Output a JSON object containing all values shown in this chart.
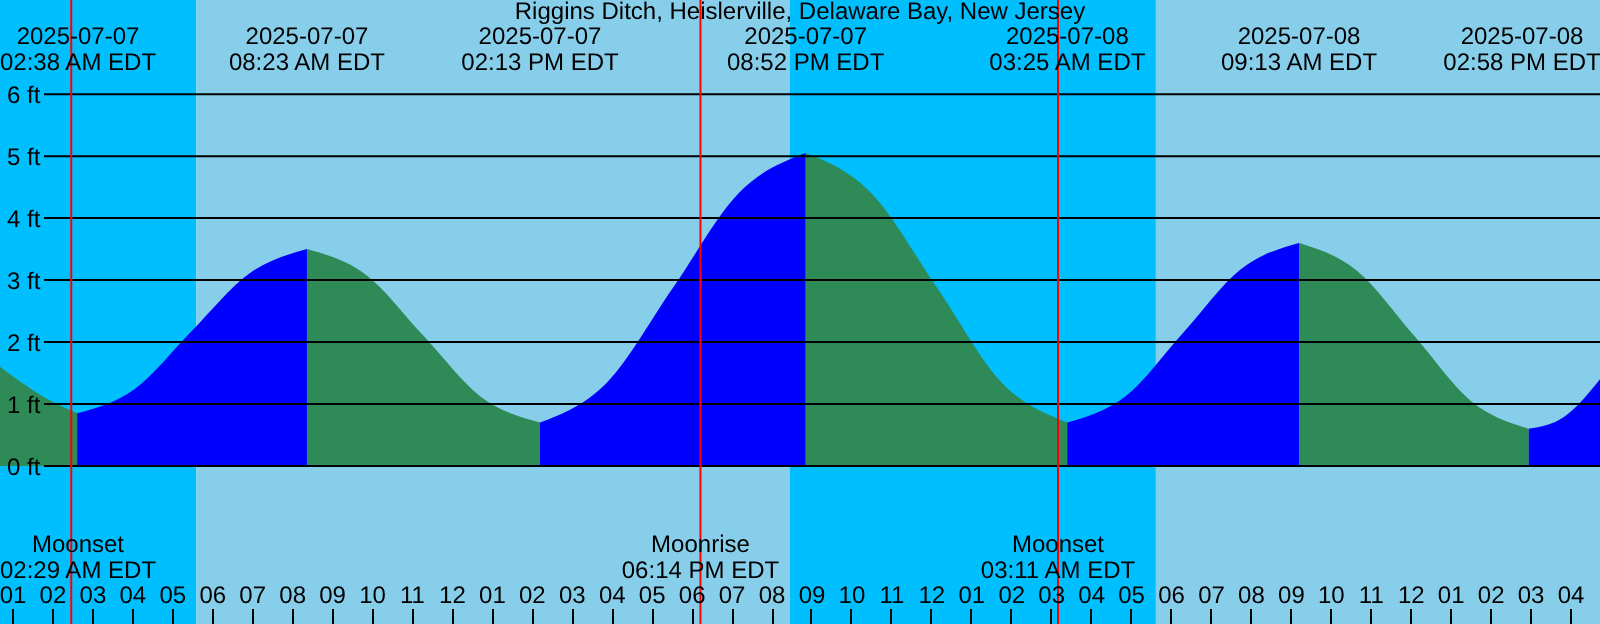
{
  "chart_data": {
    "type": "area",
    "title": "Riggins Ditch, Heislerville, Delaware Bay, New Jersey",
    "series": [
      {
        "color": "#2e8b57",
        "x": [
          "2025-07-07T00:42",
          "2025-07-07T01:42",
          "2025-07-07T02:38"
        ],
        "values": [
          1.6,
          1.15,
          0.85
        ]
      },
      {
        "color": "#0000ff",
        "x": [
          "2025-07-07T02:38",
          "2025-07-07T04:04",
          "2025-07-07T05:30",
          "2025-07-07T06:57",
          "2025-07-07T08:23"
        ],
        "values": [
          0.85,
          1.24,
          2.18,
          3.11,
          3.5
        ]
      },
      {
        "color": "#2e8b57",
        "x": [
          "2025-07-07T08:23",
          "2025-07-07T09:51",
          "2025-07-07T11:18",
          "2025-07-07T12:45",
          "2025-07-07T14:13"
        ],
        "values": [
          3.5,
          3.09,
          2.1,
          1.11,
          0.7
        ]
      },
      {
        "color": "#0000ff",
        "x": [
          "2025-07-07T14:13",
          "2025-07-07T15:53",
          "2025-07-07T17:33",
          "2025-07-07T19:12",
          "2025-07-07T20:52"
        ],
        "values": [
          0.7,
          1.34,
          2.88,
          4.41,
          5.05
        ]
      },
      {
        "color": "#2e8b57",
        "x": [
          "2025-07-07T20:52",
          "2025-07-07T22:30",
          "2025-07-08T00:09",
          "2025-07-08T01:47",
          "2025-07-08T03:25"
        ],
        "values": [
          5.05,
          4.41,
          2.88,
          1.34,
          0.7
        ]
      },
      {
        "color": "#0000ff",
        "x": [
          "2025-07-08T03:25",
          "2025-07-08T04:52",
          "2025-07-08T06:19",
          "2025-07-08T07:46",
          "2025-07-08T09:13"
        ],
        "values": [
          0.7,
          1.12,
          2.15,
          3.18,
          3.6
        ]
      },
      {
        "color": "#2e8b57",
        "x": [
          "2025-07-08T09:13",
          "2025-07-08T10:39",
          "2025-07-08T12:06",
          "2025-07-08T13:32",
          "2025-07-08T14:58"
        ],
        "values": [
          3.6,
          3.16,
          2.1,
          1.04,
          0.6
        ]
      },
      {
        "color": "#0000ff",
        "x": [
          "2025-07-08T14:58",
          "2025-07-08T15:52",
          "2025-07-08T16:45"
        ],
        "values": [
          0.6,
          0.8,
          1.4
        ]
      }
    ],
    "xlim": [
      "2025-07-07T00:42",
      "2025-07-08T16:45"
    ],
    "xticks": [
      {
        "value": "2025-07-07T01:00",
        "label": "01"
      },
      {
        "value": "2025-07-07T02:00",
        "label": "02"
      },
      {
        "value": "2025-07-07T03:00",
        "label": "03"
      },
      {
        "value": "2025-07-07T04:00",
        "label": "04"
      },
      {
        "value": "2025-07-07T05:00",
        "label": "05"
      },
      {
        "value": "2025-07-07T06:00",
        "label": "06"
      },
      {
        "value": "2025-07-07T07:00",
        "label": "07"
      },
      {
        "value": "2025-07-07T08:00",
        "label": "08"
      },
      {
        "value": "2025-07-07T09:00",
        "label": "09"
      },
      {
        "value": "2025-07-07T10:00",
        "label": "10"
      },
      {
        "value": "2025-07-07T11:00",
        "label": "11"
      },
      {
        "value": "2025-07-07T12:00",
        "label": "12"
      },
      {
        "value": "2025-07-07T13:00",
        "label": "01"
      },
      {
        "value": "2025-07-07T14:00",
        "label": "02"
      },
      {
        "value": "2025-07-07T15:00",
        "label": "03"
      },
      {
        "value": "2025-07-07T16:00",
        "label": "04"
      },
      {
        "value": "2025-07-07T17:00",
        "label": "05"
      },
      {
        "value": "2025-07-07T18:00",
        "label": "06"
      },
      {
        "value": "2025-07-07T19:00",
        "label": "07"
      },
      {
        "value": "2025-07-07T20:00",
        "label": "08"
      },
      {
        "value": "2025-07-07T21:00",
        "label": "09"
      },
      {
        "value": "2025-07-07T22:00",
        "label": "10"
      },
      {
        "value": "2025-07-07T23:00",
        "label": "11"
      },
      {
        "value": "2025-07-08T00:00",
        "label": "12"
      },
      {
        "value": "2025-07-08T01:00",
        "label": "01"
      },
      {
        "value": "2025-07-08T02:00",
        "label": "02"
      },
      {
        "value": "2025-07-08T03:00",
        "label": "03"
      },
      {
        "value": "2025-07-08T04:00",
        "label": "04"
      },
      {
        "value": "2025-07-08T05:00",
        "label": "05"
      },
      {
        "value": "2025-07-08T06:00",
        "label": "06"
      },
      {
        "value": "2025-07-08T07:00",
        "label": "07"
      },
      {
        "value": "2025-07-08T08:00",
        "label": "08"
      },
      {
        "value": "2025-07-08T09:00",
        "label": "09"
      },
      {
        "value": "2025-07-08T10:00",
        "label": "10"
      },
      {
        "value": "2025-07-08T11:00",
        "label": "11"
      },
      {
        "value": "2025-07-08T12:00",
        "label": "12"
      },
      {
        "value": "2025-07-08T13:00",
        "label": "01"
      },
      {
        "value": "2025-07-08T14:00",
        "label": "02"
      },
      {
        "value": "2025-07-08T15:00",
        "label": "03"
      },
      {
        "value": "2025-07-08T16:00",
        "label": "04"
      }
    ],
    "ylim": [
      -2.55,
      7.52
    ],
    "yticks": [
      {
        "value": 0,
        "label": "0 ft"
      },
      {
        "value": 1,
        "label": "1 ft"
      },
      {
        "value": 2,
        "label": "2 ft"
      },
      {
        "value": 3,
        "label": "3 ft"
      },
      {
        "value": 4,
        "label": "4 ft"
      },
      {
        "value": 5,
        "label": "5 ft"
      },
      {
        "value": 6,
        "label": "6 ft"
      }
    ],
    "grid": "y",
    "bands": [
      {
        "axis": "x",
        "from": "2025-07-07T00:42",
        "to": "2025-07-07T05:37",
        "color": "#00bfff"
      },
      {
        "axis": "x",
        "from": "2025-07-07T05:37",
        "to": "2025-07-07T20:28",
        "color": "#87ceeb"
      },
      {
        "axis": "x",
        "from": "2025-07-07T20:28",
        "to": "2025-07-08T05:38",
        "color": "#00bfff"
      },
      {
        "axis": "x",
        "from": "2025-07-08T05:38",
        "to": "2025-07-08T16:45",
        "color": "#87ceeb"
      }
    ],
    "ref_lines": [
      {
        "axis": "x",
        "value": "2025-07-07T02:29",
        "label": "Moonset\n02:29 AM EDT",
        "color": "#ff0000"
      },
      {
        "axis": "x",
        "value": "2025-07-07T18:14",
        "label": "Moonrise\n06:14 PM EDT",
        "color": "#ff0000"
      },
      {
        "axis": "x",
        "value": "2025-07-08T03:11",
        "label": "Moonset\n03:11 AM EDT",
        "color": "#ff0000"
      }
    ],
    "annotations": [
      "2025-07-07\n02:38 AM EDT",
      "2025-07-07\n08:23 AM EDT",
      "2025-07-07\n02:13 PM EDT",
      "2025-07-07\n08:52 PM EDT",
      "2025-07-08\n03:25 AM EDT",
      "2025-07-08\n09:13 AM EDT",
      "2025-07-08\n02:58 PM EDT"
    ]
  }
}
